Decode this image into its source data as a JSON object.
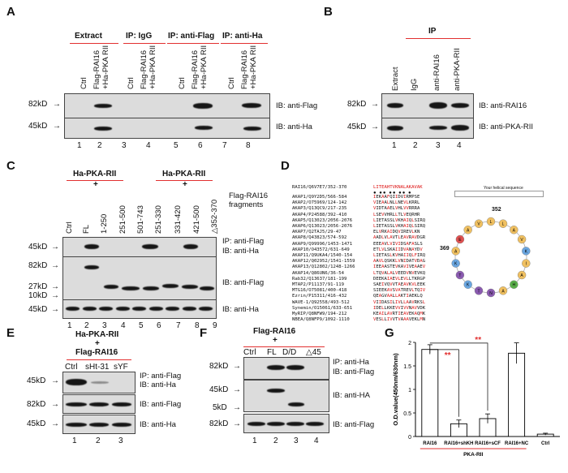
{
  "panelA": {
    "label": "A",
    "groups": [
      "Extract",
      "IP: IgG",
      "IP: anti-Flag",
      "IP: anti-Ha"
    ],
    "lanes": [
      "Ctrl",
      "Flag-RAI16\n+Ha-PKA RII",
      "Ctrl",
      "Flag-RAI16\n+Ha-PKA RII",
      "Ctrl",
      "Flag-RAI16\n+Ha-PKA RII",
      "Ctrl",
      "Flag-RAI16\n+Ha-PKA RII"
    ],
    "mw": [
      "82kD",
      "45kD"
    ],
    "ib": [
      "IB: anti-Flag",
      "IB: anti-Ha"
    ],
    "numbers": [
      "1",
      "2",
      "3",
      "4",
      "5",
      "6",
      "7",
      "8"
    ]
  },
  "panelB": {
    "label": "B",
    "group": "IP",
    "lanes": [
      "Extract",
      "IgG",
      "anti-RAI16",
      "anti-PKA-RII"
    ],
    "mw": [
      "82kD",
      "45kD"
    ],
    "ib": [
      "IB: anti-RAI16",
      "IB: anti-PKA-RII"
    ],
    "numbers": [
      "1",
      "2",
      "3",
      "4"
    ]
  },
  "panelC": {
    "label": "C",
    "header_left": "Ha-PKA-RII",
    "header_right": "Ha-PKA-RII",
    "plus": "+",
    "lanes": [
      "Ctrl",
      "FL",
      "1-250",
      "251-500",
      "501-743",
      "251-330",
      "331-420",
      "421-500",
      "△352-370"
    ],
    "fragments": "Flag-RAI16\nfragments",
    "mw": [
      "45kD",
      "82kD",
      "27kD",
      "10kD",
      "45kD"
    ],
    "ib": [
      "IP: anti-Flag",
      "IB: anti-Ha",
      "IB: anti-Flag",
      "IB: anti-Ha"
    ],
    "numbers": [
      "1",
      "2",
      "3",
      "4",
      "5",
      "6",
      "7",
      "8",
      "9"
    ]
  },
  "panelD": {
    "label": "D",
    "title": "RAI16/Q6V7E7/352-370",
    "query_seq": "LITEAHTVKNALAKAVAK",
    "rows": [
      {
        "id": "AKAP1/Q9Y2D5/566-584",
        "seq": "IEKAAFQIIDVIRMPSE"
      },
      {
        "id": "AKAP2/O75969/124-142",
        "seq": "VIEAALNLLNEVLKRRL"
      },
      {
        "id": "AKAP3/Q13QC9/217-235",
        "seq": "VIDTAAELVHLVVRRRA"
      },
      {
        "id": "AKAP4/P24588/392-410",
        "seq": "LSEVVHRLLTLVEQRHR"
      },
      {
        "id": "AKAP5/Q13023/2056-2076",
        "seq": "LIETASSLVKHAIQLSIRQ"
      },
      {
        "id": "AKAP6/Q13023/2056-2076",
        "seq": "LIETASSLVKHAIQLSIRQ"
      },
      {
        "id": "AKAP7/Q2TAJ5/29-47",
        "seq": "ELVRKAIDQVIREVLKN"
      },
      {
        "id": "AKAP8/Q43823/574-592",
        "seq": "AADLVLAVTLEAVRAVDGR"
      },
      {
        "id": "AKAP9/Q99996/1453-1471",
        "seq": "EEEAVLVIVIDSAFASLS"
      },
      {
        "id": "AKAP10/O43572/631-649",
        "seq": "ETLVLSKAIIDVANAYDV"
      },
      {
        "id": "AKAP11/Q9UKA4/1540-154",
        "seq": "LIETASLKVHAIIQLFIRQ"
      },
      {
        "id": "AKAP12/Q02952/1541-1559",
        "seq": "AAVLQSKKLVNIDATVDAG"
      },
      {
        "id": "AKAP13/Q12802/1248-1266",
        "seq": "IEEAASTEVKAVIVEAAEV"
      },
      {
        "id": "AKAP14/Q86UN6/36-54",
        "seq": "LTQVALALVEEDVNVEVKQ"
      },
      {
        "id": "Rab32/Q13637/181-199",
        "seq": "DEEKAIAEVLEVLLTKRGP"
      },
      {
        "id": "MTAP2/P11137/91-119",
        "seq": "SAEIVQVVTAEAVKVLEEK"
      },
      {
        "id": "MTG16/O75081/400-418",
        "seq": "SIEEKAVSVATREVLTQIV"
      },
      {
        "id": "Ezrin/P15311/416-432",
        "seq": "QEAGVAALLAKTIAEKLQ"
      },
      {
        "id": "WAVE-1/Q92558/493-512",
        "seq": "VIIDASILIVLLAAVRKSL"
      },
      {
        "id": "Synemin/O15061/633-651",
        "seq": "IDELLKKEVVIVVNAVVDK"
      },
      {
        "id": "MyRIP/Q8NFW9/194-212",
        "seq": "KEAILAVRTIEAVEKAQMK"
      },
      {
        "id": "NBEA/Q8NFP9/1092-1110",
        "seq": "VESLLIVVTVAAAVEKLMN"
      }
    ],
    "helix_title": "Your helical sequence",
    "helix_start": "352",
    "helix_end": "369"
  },
  "panelE": {
    "label": "E",
    "header1": "Ha-PKA-RII",
    "header2": "+",
    "header3": "Flag-RAI16",
    "lanes": [
      "Ctrl",
      "sHt-31",
      "sYF"
    ],
    "mw": [
      "45kD",
      "82kD",
      "45kD"
    ],
    "ib": [
      "IP: anti-Flag",
      "IB: anti-Ha",
      "IB: anti-Flag",
      "IB: anti-Ha"
    ],
    "numbers": [
      "1",
      "2",
      "3"
    ]
  },
  "panelF": {
    "label": "F",
    "header1": "Flag-RAI16",
    "header2": "+",
    "lanes": [
      "Ctrl",
      "FL",
      "D/D",
      "△45"
    ],
    "mw": [
      "82kD",
      "45kD",
      "5kD",
      "82kD"
    ],
    "ib": [
      "IP: anti-Ha",
      "IB: anti-Flag",
      "IB: anti-HA",
      "IB: anti-Flag"
    ],
    "numbers": [
      "1",
      "2",
      "3",
      "4"
    ]
  },
  "panelG": {
    "label": "G",
    "group_label": "PKA-RII",
    "sig1": "**",
    "sig2": "**"
  },
  "chart_data": {
    "type": "bar",
    "categories": [
      "RAI16",
      "RAI16+shKH",
      "RAI16+sCF",
      "RAI16+NC",
      "Ctrl"
    ],
    "values": [
      1.85,
      0.27,
      0.38,
      1.77,
      0.05
    ],
    "errors": [
      0.1,
      0.08,
      0.1,
      0.22,
      0.02
    ],
    "ylabel": "O.D.value(450nm/630nm)",
    "ylim": [
      0,
      2
    ],
    "yticks": [
      0,
      0.5,
      1,
      1.5,
      2
    ],
    "bar_color": "#ffffff",
    "significance_color": "#e23030"
  }
}
